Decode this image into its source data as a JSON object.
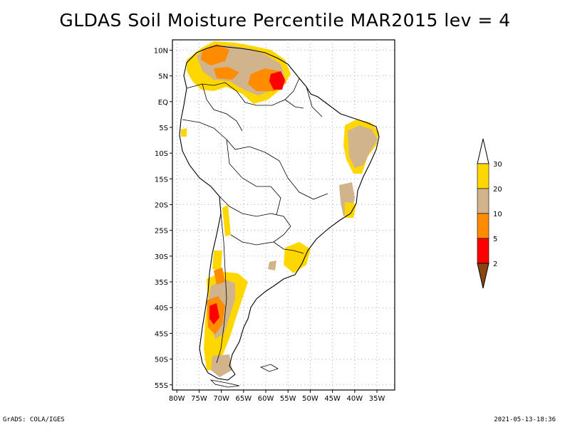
{
  "title": "GLDAS Soil Moisture Percentile MAR2015 lev = 4",
  "footer": {
    "left": "GrADS: COLA/IGES",
    "right": "2021-05-13-18:36"
  },
  "map": {
    "lat_labels": [
      "10N",
      "5N",
      "EQ",
      "5S",
      "10S",
      "15S",
      "20S",
      "25S",
      "30S",
      "35S",
      "40S",
      "45S",
      "50S",
      "55S"
    ],
    "lon_labels": [
      "80W",
      "75W",
      "70W",
      "65W",
      "60W",
      "55W",
      "50W",
      "45W",
      "40W",
      "35W"
    ],
    "lon_range": [
      -81,
      -31
    ],
    "lat_range": [
      -56,
      12
    ],
    "grid": true
  },
  "legend": {
    "labels": [
      "2",
      "5",
      "10",
      "20",
      "30"
    ],
    "colors": [
      "#8b4513",
      "#ff0000",
      "#ff8c00",
      "#d2b48c",
      "#ffd700",
      "#ffffff"
    ]
  },
  "colors": {
    "yellow": "#ffd700",
    "tan": "#d2b48c",
    "orange": "#ff8c00",
    "red": "#ff0000",
    "brown": "#8b4513"
  }
}
